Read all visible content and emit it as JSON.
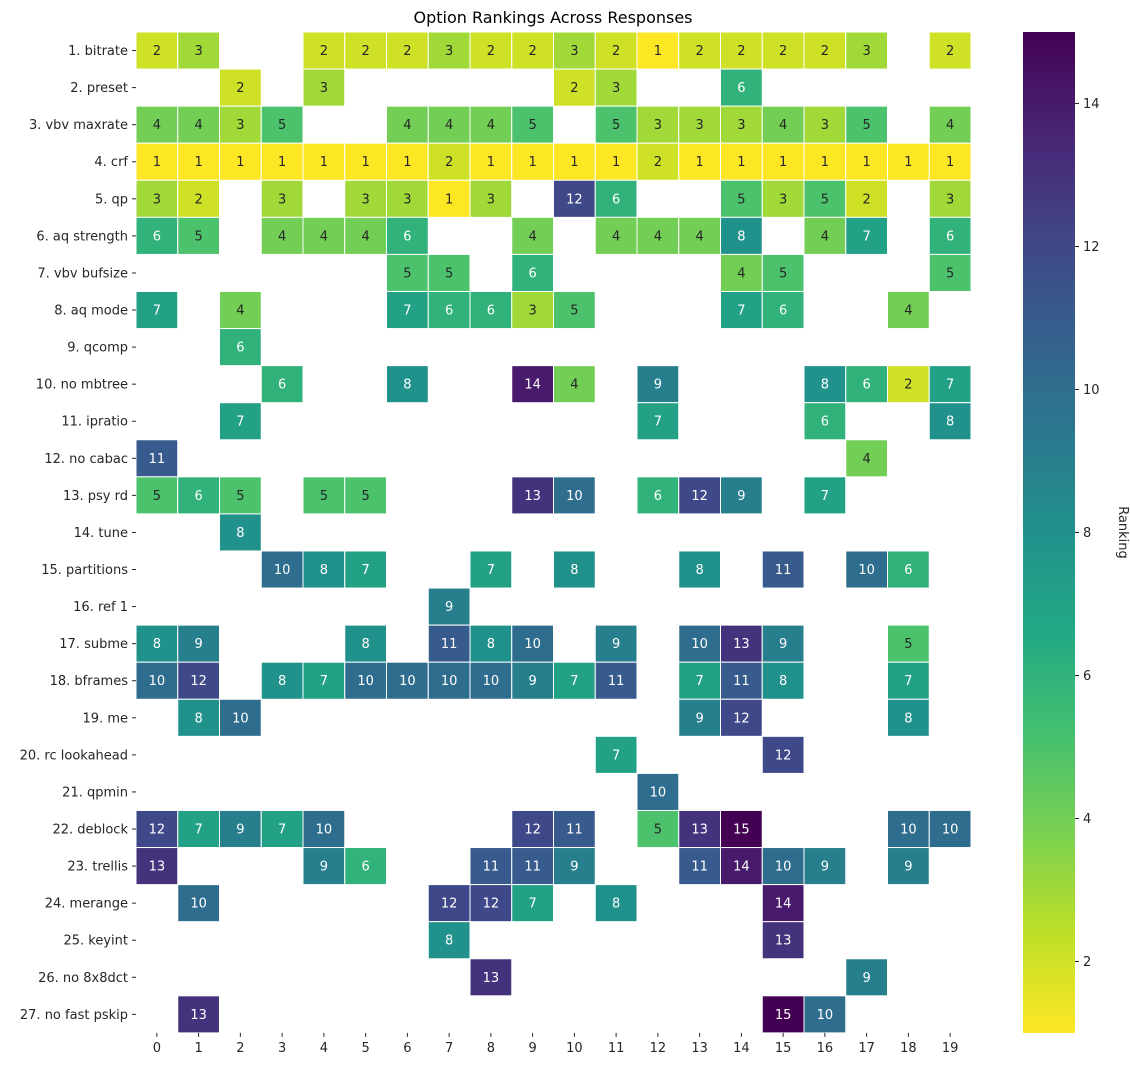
{
  "chart_data": {
    "type": "heatmap",
    "title": "Option Rankings Across Responses",
    "xlabel": "",
    "ylabel": "",
    "x_categories": [
      "0",
      "1",
      "2",
      "3",
      "4",
      "5",
      "6",
      "7",
      "8",
      "9",
      "10",
      "11",
      "12",
      "13",
      "14",
      "15",
      "16",
      "17",
      "18",
      "19"
    ],
    "y_categories": [
      "1. bitrate",
      "2. preset",
      "3. vbv maxrate",
      "4. crf",
      "5. qp",
      "6. aq strength",
      "7. vbv bufsize",
      "8. aq mode",
      "9. qcomp",
      "10. no mbtree",
      "11. ipratio",
      "12. no cabac",
      "13. psy rd",
      "14. tune",
      "15. partitions",
      "16. ref 1",
      "17. subme",
      "18. bframes",
      "19. me",
      "20. rc lookahead",
      "21. qpmin",
      "22. deblock",
      "23. trellis",
      "24. merange",
      "25. keyint",
      "26. no 8x8dct",
      "27. no fast pskip"
    ],
    "values": [
      [
        2,
        3,
        null,
        null,
        2,
        2,
        2,
        3,
        2,
        2,
        3,
        2,
        1,
        2,
        2,
        2,
        2,
        3,
        null,
        2
      ],
      [
        null,
        null,
        2,
        null,
        3,
        null,
        null,
        null,
        null,
        null,
        2,
        3,
        null,
        null,
        6,
        null,
        null,
        null,
        null,
        null
      ],
      [
        4,
        4,
        3,
        5,
        null,
        null,
        4,
        4,
        4,
        5,
        null,
        5,
        3,
        3,
        3,
        4,
        3,
        5,
        null,
        4
      ],
      [
        1,
        1,
        1,
        1,
        1,
        1,
        1,
        2,
        1,
        1,
        1,
        1,
        2,
        1,
        1,
        1,
        1,
        1,
        1,
        1
      ],
      [
        3,
        2,
        null,
        3,
        null,
        3,
        3,
        1,
        3,
        null,
        12,
        6,
        null,
        null,
        5,
        3,
        5,
        2,
        null,
        3
      ],
      [
        6,
        5,
        null,
        4,
        4,
        4,
        6,
        null,
        null,
        4,
        null,
        4,
        4,
        4,
        8,
        null,
        4,
        7,
        null,
        6
      ],
      [
        null,
        null,
        null,
        null,
        null,
        null,
        5,
        5,
        null,
        6,
        null,
        null,
        null,
        null,
        4,
        5,
        null,
        null,
        null,
        5
      ],
      [
        7,
        null,
        4,
        null,
        null,
        null,
        7,
        6,
        6,
        3,
        5,
        null,
        null,
        null,
        7,
        6,
        null,
        null,
        4,
        null
      ],
      [
        null,
        null,
        6,
        null,
        null,
        null,
        null,
        null,
        null,
        null,
        null,
        null,
        null,
        null,
        null,
        null,
        null,
        null,
        null,
        null
      ],
      [
        null,
        null,
        null,
        6,
        null,
        null,
        8,
        null,
        null,
        14,
        4,
        null,
        9,
        null,
        null,
        null,
        8,
        6,
        2,
        7
      ],
      [
        null,
        null,
        7,
        null,
        null,
        null,
        null,
        null,
        null,
        null,
        null,
        null,
        7,
        null,
        null,
        null,
        6,
        null,
        null,
        8
      ],
      [
        11,
        null,
        null,
        null,
        null,
        null,
        null,
        null,
        null,
        null,
        null,
        null,
        null,
        null,
        null,
        null,
        null,
        4,
        null,
        null
      ],
      [
        5,
        6,
        5,
        null,
        5,
        5,
        null,
        null,
        null,
        13,
        10,
        null,
        6,
        12,
        9,
        null,
        7,
        null,
        null,
        null
      ],
      [
        null,
        null,
        8,
        null,
        null,
        null,
        null,
        null,
        null,
        null,
        null,
        null,
        null,
        null,
        null,
        null,
        null,
        null,
        null,
        null
      ],
      [
        null,
        null,
        null,
        10,
        8,
        7,
        null,
        null,
        7,
        null,
        8,
        null,
        null,
        8,
        null,
        11,
        null,
        10,
        6,
        null
      ],
      [
        null,
        null,
        null,
        null,
        null,
        null,
        null,
        9,
        null,
        null,
        null,
        null,
        null,
        null,
        null,
        null,
        null,
        null,
        null,
        null
      ],
      [
        8,
        9,
        null,
        null,
        null,
        8,
        null,
        11,
        8,
        10,
        null,
        9,
        null,
        10,
        13,
        9,
        null,
        null,
        5,
        null
      ],
      [
        10,
        12,
        null,
        8,
        7,
        10,
        10,
        10,
        10,
        9,
        7,
        11,
        null,
        7,
        11,
        8,
        null,
        null,
        7,
        null
      ],
      [
        null,
        8,
        10,
        null,
        null,
        null,
        null,
        null,
        null,
        null,
        null,
        null,
        null,
        9,
        12,
        null,
        null,
        null,
        8,
        null
      ],
      [
        null,
        null,
        null,
        null,
        null,
        null,
        null,
        null,
        null,
        null,
        null,
        7,
        null,
        null,
        null,
        12,
        null,
        null,
        null,
        null
      ],
      [
        null,
        null,
        null,
        null,
        null,
        null,
        null,
        null,
        null,
        null,
        null,
        null,
        10,
        null,
        null,
        null,
        null,
        null,
        null,
        null
      ],
      [
        12,
        7,
        9,
        7,
        10,
        null,
        null,
        null,
        null,
        12,
        11,
        null,
        5,
        13,
        15,
        null,
        null,
        null,
        10,
        10
      ],
      [
        13,
        null,
        null,
        null,
        9,
        6,
        null,
        null,
        11,
        11,
        9,
        null,
        null,
        11,
        14,
        10,
        9,
        null,
        9,
        null
      ],
      [
        null,
        10,
        null,
        null,
        null,
        null,
        null,
        12,
        12,
        7,
        null,
        8,
        null,
        null,
        null,
        14,
        null,
        null,
        null,
        null
      ],
      [
        null,
        null,
        null,
        null,
        null,
        null,
        null,
        8,
        null,
        null,
        null,
        null,
        null,
        null,
        null,
        13,
        null,
        null,
        null,
        null
      ],
      [
        null,
        null,
        null,
        null,
        null,
        null,
        null,
        null,
        13,
        null,
        null,
        null,
        null,
        null,
        null,
        null,
        null,
        9,
        null,
        null
      ],
      [
        null,
        13,
        null,
        null,
        null,
        null,
        null,
        null,
        null,
        null,
        null,
        null,
        null,
        null,
        null,
        15,
        10,
        null,
        null,
        null
      ]
    ],
    "colormap": "viridis_r",
    "vmin": 1,
    "vmax": 15,
    "colorbar": {
      "label": "Ranking",
      "ticks": [
        2,
        4,
        6,
        8,
        10,
        12,
        14
      ],
      "tick_labels": [
        "2",
        "4",
        "6",
        "8",
        "10",
        "12",
        "14"
      ]
    }
  }
}
